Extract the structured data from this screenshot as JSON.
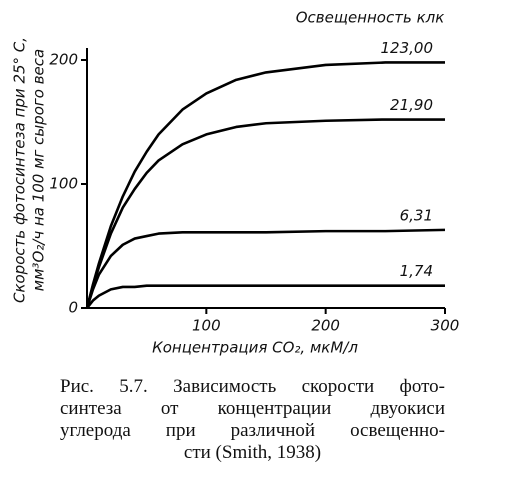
{
  "chart_data": {
    "type": "line",
    "legend_title": "Освещенность клк",
    "ylabel": [
      "Скорость фотосинтеза при 25° С,",
      "мм³O₂/ч на 100 мг сырого веса"
    ],
    "xlabel": "Концентрация CO₂, мкМ/л",
    "x": [
      0,
      5,
      10,
      20,
      30,
      40,
      50,
      60,
      80,
      100,
      125,
      150,
      200,
      250,
      300
    ],
    "series": [
      {
        "name": "123,00",
        "color": "#000000",
        "values": [
          0,
          19,
          36,
          66,
          90,
          110,
          126,
          140,
          160,
          173,
          184,
          190,
          196,
          198,
          198
        ]
      },
      {
        "name": "21,90",
        "color": "#000000",
        "values": [
          0,
          18,
          33,
          60,
          81,
          96,
          109,
          119,
          132,
          140,
          146,
          149,
          151,
          152,
          152
        ]
      },
      {
        "name": "6,31",
        "color": "#000000",
        "values": [
          0,
          15,
          27,
          42,
          51,
          56,
          58,
          60,
          61,
          61,
          61,
          61,
          62,
          62,
          63
        ]
      },
      {
        "name": "1,74",
        "color": "#000000",
        "values": [
          0,
          6,
          10,
          15,
          17,
          17,
          18,
          18,
          18,
          18,
          18,
          18,
          18,
          18,
          18
        ]
      }
    ],
    "xlim": [
      0,
      300
    ],
    "ylim": [
      0,
      200
    ],
    "xticks": [
      100,
      200,
      300
    ],
    "yticks": [
      0,
      100,
      200
    ],
    "caption": [
      "Рис. 5.7. Зависимость скорости фото-",
      "синтеза от концентрации двуокиси",
      "углерода при различной освещенно-",
      "сти (Smith, 1938)"
    ]
  }
}
